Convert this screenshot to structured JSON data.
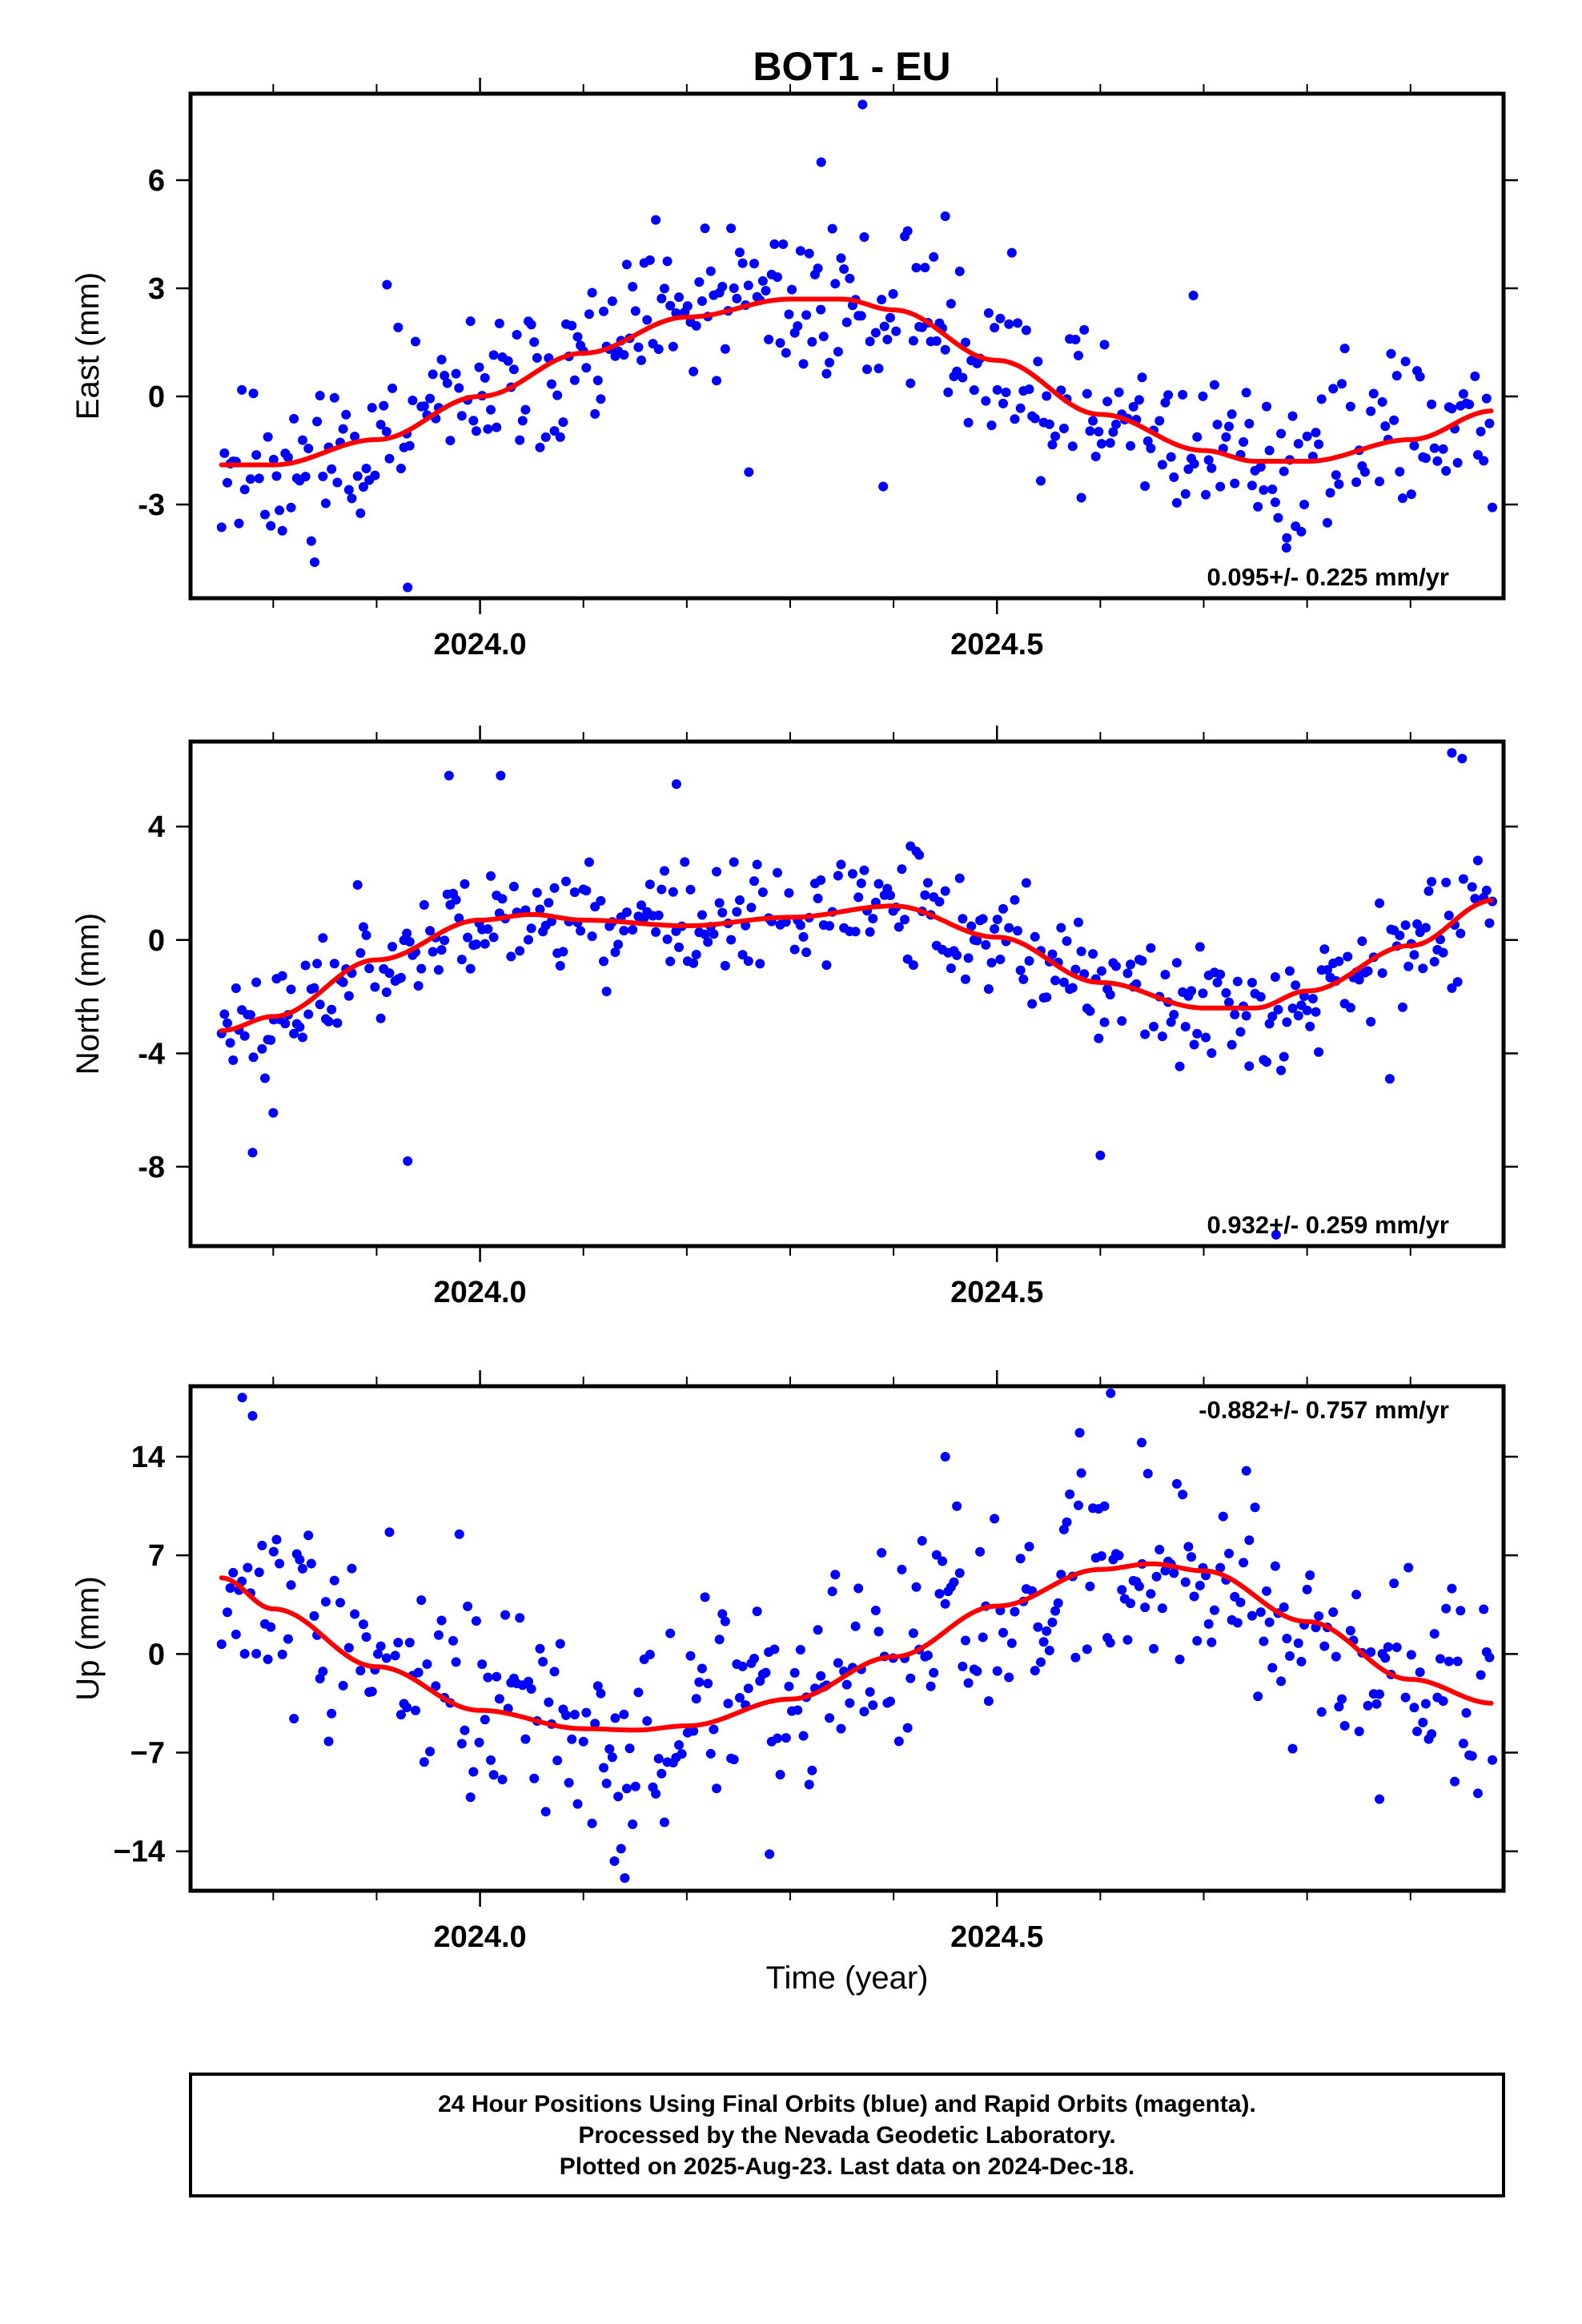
{
  "title": "BOT1 - EU",
  "xlabel": "Time (year)",
  "footer": {
    "lines": [
      "24 Hour Positions Using Final Orbits (blue) and Rapid Orbits (magenta).",
      "Processed by the Nevada Geodetic Laboratory.",
      "Plotted on 2025-Aug-23. Last data on 2024-Dec-18."
    ]
  },
  "colors": {
    "points": "#0000ff",
    "fit": "#ff0000",
    "frame": "#000000"
  },
  "chart_data": [
    {
      "type": "scatter",
      "ylabel": "East (mm)",
      "rate_text": "0.095+/- 0.225 mm/yr",
      "rate_position": "bottom-right",
      "xlim": [
        2023.72,
        2024.99
      ],
      "ylim": [
        -5.6,
        8.4
      ],
      "xticks": [
        2024.0,
        2024.5
      ],
      "xtick_labels": [
        "2024.0",
        "2024.5"
      ],
      "yticks": [
        -3,
        0,
        3,
        6
      ],
      "ytick_labels": [
        "-3",
        "0",
        "3",
        "6"
      ],
      "scatter_spread": 1.4,
      "seed": 11,
      "fit": {
        "name": "red fit",
        "x": [
          2023.75,
          2023.8,
          2023.9,
          2024.0,
          2024.1,
          2024.2,
          2024.3,
          2024.35,
          2024.4,
          2024.5,
          2024.6,
          2024.7,
          2024.75,
          2024.8,
          2024.9,
          2024.98
        ],
        "y": [
          -1.9,
          -1.9,
          -1.2,
          0.0,
          1.2,
          2.2,
          2.7,
          2.7,
          2.4,
          1.0,
          -0.5,
          -1.5,
          -1.8,
          -1.8,
          -1.2,
          -0.4
        ]
      },
      "outliers": [
        {
          "x": 2024.37,
          "y": 8.1
        },
        {
          "x": 2024.33,
          "y": 6.5
        },
        {
          "x": 2023.93,
          "y": -5.3
        },
        {
          "x": 2023.84,
          "y": -4.6
        },
        {
          "x": 2024.78,
          "y": -4.2
        },
        {
          "x": 2024.69,
          "y": 2.8
        },
        {
          "x": 2024.45,
          "y": 5.0
        },
        {
          "x": 2024.39,
          "y": -2.5
        },
        {
          "x": 2024.26,
          "y": -2.1
        },
        {
          "x": 2023.91,
          "y": 3.1
        }
      ]
    },
    {
      "type": "scatter",
      "ylabel": "North (mm)",
      "rate_text": "0.932+/- 0.259 mm/yr",
      "rate_position": "bottom-right",
      "xlim": [
        2023.72,
        2024.99
      ],
      "ylim": [
        -10.8,
        7.0
      ],
      "xticks": [
        2024.0,
        2024.5
      ],
      "xtick_labels": [
        "2024.0",
        "2024.5"
      ],
      "yticks": [
        -8,
        -4,
        0,
        4
      ],
      "ytick_labels": [
        "-8",
        "-4",
        "0",
        "4"
      ],
      "scatter_spread": 1.3,
      "seed": 23,
      "fit": {
        "name": "red fit",
        "x": [
          2023.75,
          2023.8,
          2023.9,
          2024.0,
          2024.05,
          2024.1,
          2024.2,
          2024.3,
          2024.4,
          2024.5,
          2024.6,
          2024.7,
          2024.75,
          2024.8,
          2024.9,
          2024.98
        ],
        "y": [
          -3.2,
          -2.7,
          -0.7,
          0.7,
          0.9,
          0.7,
          0.5,
          0.8,
          1.2,
          0.1,
          -1.5,
          -2.4,
          -2.4,
          -1.8,
          -0.2,
          1.4
        ]
      },
      "outliers": [
        {
          "x": 2024.94,
          "y": 6.6
        },
        {
          "x": 2024.95,
          "y": 6.4
        },
        {
          "x": 2024.77,
          "y": -10.4
        },
        {
          "x": 2023.93,
          "y": -7.8
        },
        {
          "x": 2023.78,
          "y": -7.5
        },
        {
          "x": 2024.6,
          "y": -7.6
        },
        {
          "x": 2023.97,
          "y": 5.8
        },
        {
          "x": 2024.02,
          "y": 5.8
        },
        {
          "x": 2024.19,
          "y": 5.5
        },
        {
          "x": 2023.8,
          "y": -6.1
        },
        {
          "x": 2024.88,
          "y": -4.9
        }
      ]
    },
    {
      "type": "scatter",
      "ylabel": "Up (mm)",
      "rate_text": "-0.882+/- 0.757 mm/yr",
      "rate_position": "top-right",
      "xlim": [
        2023.72,
        2024.99
      ],
      "ylim": [
        -16.8,
        19.0
      ],
      "xticks": [
        2024.0,
        2024.5
      ],
      "xtick_labels": [
        "2024.0",
        "2024.5"
      ],
      "yticks": [
        -14,
        -7,
        0,
        7,
        14
      ],
      "ytick_labels": [
        "−14",
        "−7",
        "0",
        "7",
        "14"
      ],
      "scatter_spread": 4.5,
      "seed": 37,
      "fit": {
        "name": "red fit",
        "x": [
          2023.75,
          2023.8,
          2023.9,
          2024.0,
          2024.1,
          2024.15,
          2024.2,
          2024.3,
          2024.4,
          2024.5,
          2024.6,
          2024.65,
          2024.7,
          2024.8,
          2024.9,
          2024.98
        ],
        "y": [
          5.4,
          3.2,
          -0.9,
          -4.0,
          -5.3,
          -5.4,
          -5.1,
          -3.2,
          -0.2,
          3.4,
          6.0,
          6.4,
          5.9,
          2.3,
          -1.8,
          -3.5
        ]
      },
      "outliers": [
        {
          "x": 2023.77,
          "y": 18.2
        },
        {
          "x": 2023.78,
          "y": 16.9
        },
        {
          "x": 2024.61,
          "y": 18.5
        },
        {
          "x": 2024.14,
          "y": -15.9
        },
        {
          "x": 2024.13,
          "y": -14.7
        },
        {
          "x": 2024.58,
          "y": 15.7
        },
        {
          "x": 2024.64,
          "y": 15.0
        },
        {
          "x": 2024.28,
          "y": -14.2
        },
        {
          "x": 2023.98,
          "y": 8.5
        },
        {
          "x": 2024.87,
          "y": -10.3
        },
        {
          "x": 2024.45,
          "y": 14.0
        }
      ]
    }
  ]
}
